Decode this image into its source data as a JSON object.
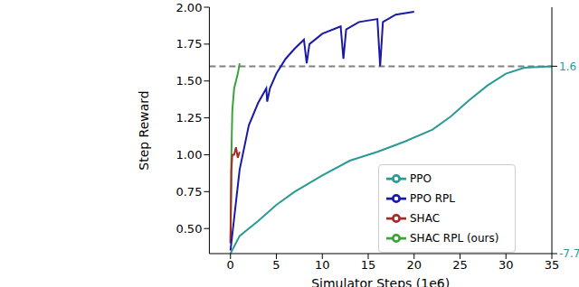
{
  "chart_data": {
    "type": "line",
    "x_label": "Simulator Steps (1e6)",
    "y_label": "Step Reward",
    "xlim": [
      -2.3,
      35
    ],
    "xticks": [
      0,
      5,
      10,
      15,
      20,
      25,
      30,
      35
    ],
    "ylim": [
      0.33,
      2.0
    ],
    "yticks": [
      {
        "value": 0.5,
        "label": "0.50"
      },
      {
        "value": 0.75,
        "label": "0.75"
      },
      {
        "value": 1.0,
        "label": "1.00"
      },
      {
        "value": 1.25,
        "label": "1.25"
      },
      {
        "value": 1.5,
        "label": "1.50"
      },
      {
        "value": 1.75,
        "label": "1.75"
      },
      {
        "value": 2.0,
        "label": "2.00"
      }
    ],
    "grid": false,
    "legend": "lower right",
    "reference_lines": [
      {
        "y": 1.6,
        "line_style": "dashed",
        "color": "#808080"
      }
    ],
    "annotations": [
      {
        "text": "1.6",
        "y": 1.6,
        "color": "#2a9a96"
      },
      {
        "text": "-7.7",
        "y": 0.33,
        "color": "#2a9a96"
      }
    ],
    "series": [
      {
        "name": "SHAC RPL (ours)",
        "color": "#3aa33a",
        "x": [
          0,
          0.1,
          0.2,
          0.4,
          0.6,
          0.8,
          1.0
        ],
        "values": [
          0.4,
          1.0,
          1.3,
          1.45,
          1.5,
          1.55,
          1.62
        ]
      },
      {
        "name": "SHAC",
        "color": "#a52a2a",
        "x": [
          0,
          0.1,
          0.2,
          0.4,
          0.6,
          0.8,
          1.0
        ],
        "values": [
          0.4,
          0.9,
          1.0,
          1.0,
          1.05,
          0.98,
          1.02
        ]
      },
      {
        "name": "PPO RPL",
        "color": "#1a1aa6",
        "x": [
          0,
          1,
          2,
          3,
          3.9,
          4,
          4.3,
          5,
          6,
          7,
          8,
          8.3,
          8.6,
          10,
          12,
          12.3,
          12.6,
          14,
          16,
          16.3,
          16.6,
          18,
          20
        ],
        "values": [
          0.35,
          0.9,
          1.2,
          1.35,
          1.45,
          1.36,
          1.45,
          1.55,
          1.65,
          1.72,
          1.78,
          1.62,
          1.75,
          1.82,
          1.87,
          1.65,
          1.85,
          1.9,
          1.92,
          1.6,
          1.9,
          1.95,
          1.97
        ]
      },
      {
        "name": "PPO",
        "color": "#2a9a96",
        "x": [
          0,
          1,
          3,
          5,
          7,
          10,
          13,
          16,
          19,
          22,
          24,
          26,
          28,
          30,
          32,
          35
        ],
        "values": [
          0.33,
          0.45,
          0.55,
          0.66,
          0.75,
          0.86,
          0.96,
          1.02,
          1.09,
          1.17,
          1.26,
          1.37,
          1.47,
          1.55,
          1.59,
          1.6
        ]
      }
    ]
  }
}
